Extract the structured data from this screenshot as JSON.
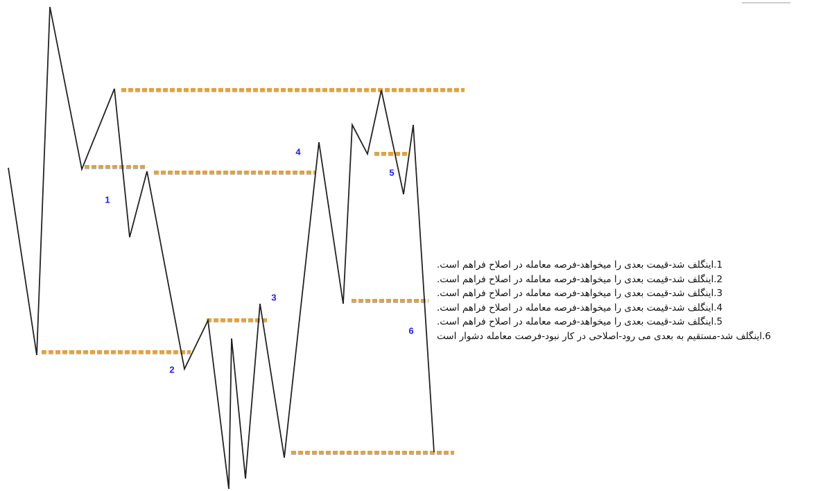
{
  "labels": [
    "1",
    "2",
    "3",
    "4",
    "5",
    "6"
  ],
  "notes": [
    "1.اینگلف شد-قیمت بعدی را میخواهد-فرصه معامله در اصلاح فراهم است.",
    "2.اینگلف شد-قیمت بعدی را میخواهد-فرصه معامله در اصلاح فراهم است.",
    "3.اینگلف شد-قیمت بعدی را میخواهد-فرصه معامله در اصلاح فراهم است.",
    "4.اینگلف شد-قیمت بعدی را میخواهد-فرصه معامله در اصلاح فراهم است.",
    "5.اینگلف شد-قیمت بعدی را میخواهد-فرصه معامله در اصلاح فراهم است.",
    "6.اینگلف شد-مستقیم به بعدی می رود-اصلاحی در کار نبود-فرصت معامله دشوار است"
  ]
}
